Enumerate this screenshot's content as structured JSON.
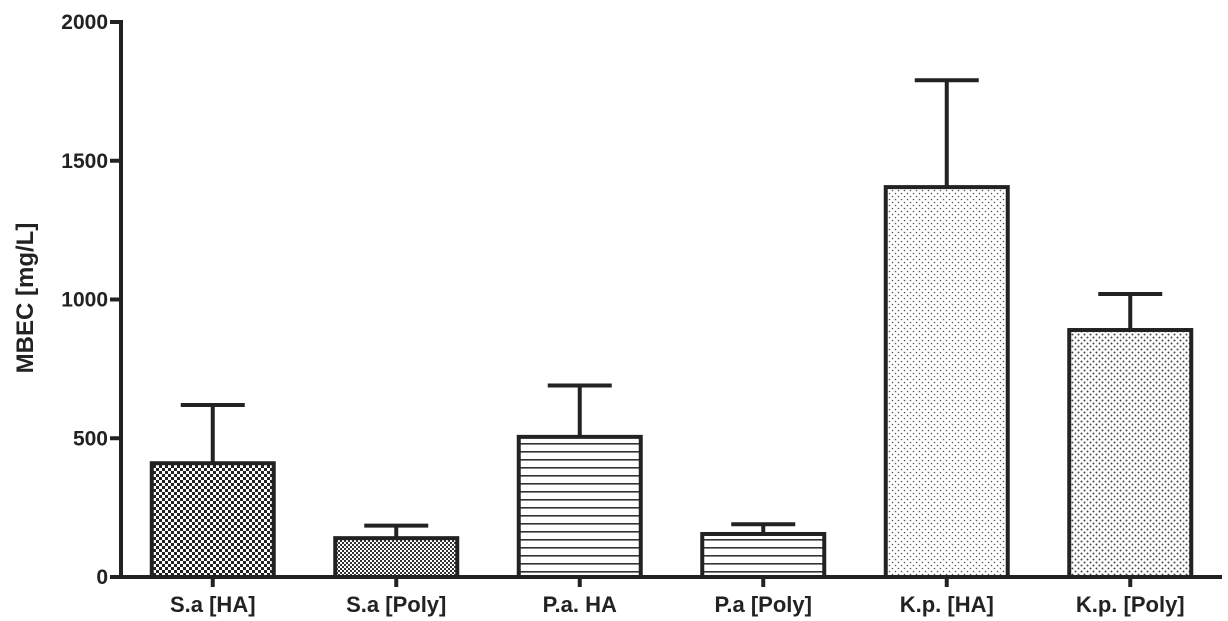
{
  "chart_data": {
    "type": "bar",
    "ylabel": "MBEC [mg/L]",
    "xlabel": "",
    "ylim": [
      0,
      2000
    ],
    "yticks": [
      0,
      500,
      1000,
      1500,
      2000
    ],
    "ytick_labels": [
      "0",
      "500",
      "1000",
      "1500",
      "2000"
    ],
    "categories": [
      "S.a [HA]",
      "S.a [Poly]",
      "P.a. HA",
      "P.a [Poly]",
      "K.p. [HA]",
      "K.p. [Poly]"
    ],
    "values": [
      410,
      140,
      505,
      155,
      1405,
      890
    ],
    "error_upper": [
      620,
      185,
      690,
      190,
      1790,
      1020
    ],
    "patterns": [
      "checker-dense",
      "checker-fine",
      "horizontal-lines",
      "horizontal-lines",
      "dots",
      "dots-medium"
    ],
    "grid": false,
    "legend": "none",
    "colors": {
      "stroke": "#222222",
      "background": "#ffffff"
    }
  }
}
